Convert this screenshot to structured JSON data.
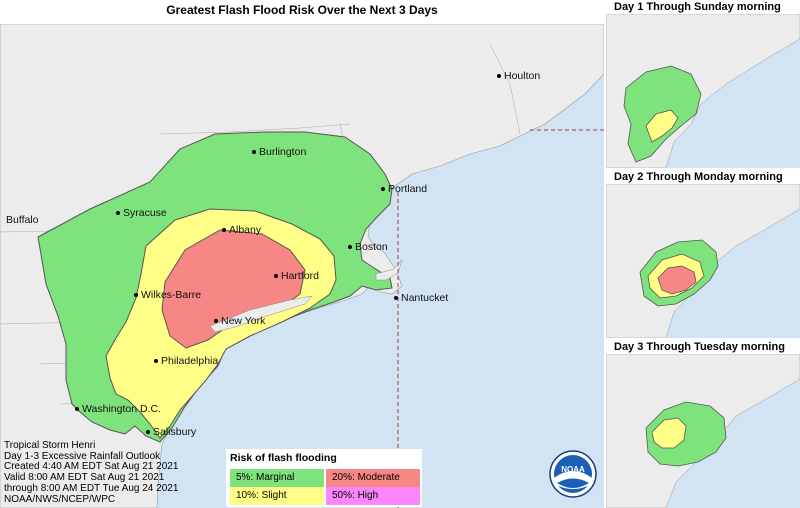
{
  "title": "Greatest Flash Flood Risk Over the Next 3 Days",
  "cities": [
    {
      "name": "Houlton",
      "dot": true
    },
    {
      "name": "Burlington",
      "dot": true
    },
    {
      "name": "Portland",
      "dot": true
    },
    {
      "name": "Buffalo",
      "dot": false
    },
    {
      "name": "Syracuse",
      "dot": true
    },
    {
      "name": "Albany",
      "dot": true
    },
    {
      "name": "Boston",
      "dot": true
    },
    {
      "name": "Hartford",
      "dot": true
    },
    {
      "name": "Nantucket",
      "dot": true
    },
    {
      "name": "Wilkes-Barre",
      "dot": true
    },
    {
      "name": "New York",
      "dot": true
    },
    {
      "name": "Philadelphia",
      "dot": true
    },
    {
      "name": "Washington D.C.",
      "dot": true
    },
    {
      "name": "Salisbury",
      "dot": true
    }
  ],
  "info_lines": [
    "Tropical Storm Henri",
    "Day 1-3 Excessive Rainfall Outlook",
    "Created 4:40 AM EDT Sat Aug 21 2021",
    "Valid 8:00 AM EDT Sat Aug 21 2021",
    "through 8:00 AM EDT Tue Aug 24 2021",
    "NOAA/NWS/NCEP/WPC"
  ],
  "legend": {
    "title": "Risk of flash flooding",
    "items": [
      {
        "label": "5%: Marginal",
        "color": "#7fe37d"
      },
      {
        "label": "20%: Moderate",
        "color": "#f78785"
      },
      {
        "label": "10%: Slight",
        "color": "#ffff88"
      },
      {
        "label": "50%: High",
        "color": "#fb86fb"
      }
    ]
  },
  "insets": [
    {
      "title": "Day 1 Through Sunday morning"
    },
    {
      "title": "Day 2 Through Monday morning"
    },
    {
      "title": "Day 3 Through Tuesday morning"
    }
  ],
  "logo": {
    "text": "NOAA"
  },
  "colors": {
    "ocean": "#d2e4f3",
    "land": "#ececec",
    "marginal": "#7fe37d",
    "slight": "#ffff88",
    "moderate": "#f78785",
    "high": "#fb86fb"
  }
}
